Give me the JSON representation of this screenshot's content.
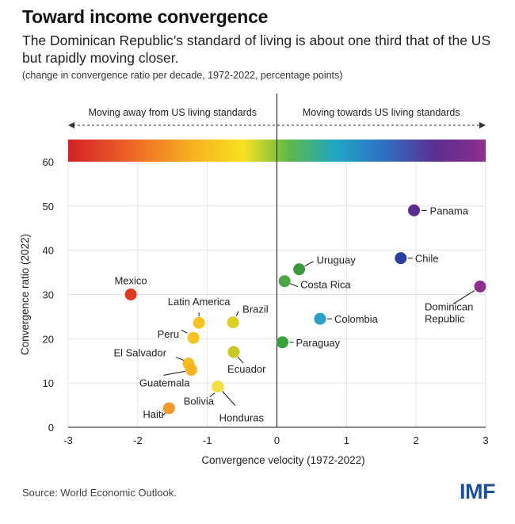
{
  "header": {
    "title": "Toward income convergence",
    "subtitle": "The Dominican Republic’s standard of living is about one third that of the US but rapidly moving closer.",
    "note": "(change in convergence ratio per decade, 1972-2022, percentage points)"
  },
  "footer": {
    "source": "Source: World Economic Outlook.",
    "logo_text": "IMF"
  },
  "chart_data": {
    "type": "scatter",
    "xlabel": "Convergence velocity (1972-2022)",
    "ylabel": "Convergence ratio (2022)",
    "xlim": [
      -3,
      3
    ],
    "ylim": [
      0,
      65
    ],
    "xticks": [
      "-3",
      "-2",
      "-1",
      "0",
      "1",
      "2",
      "3"
    ],
    "yticks": [
      "0",
      "10",
      "20",
      "30",
      "40",
      "50",
      "60"
    ],
    "grid": true,
    "direction_left": "Moving away from US living standards",
    "direction_right": "Moving towards US living standards",
    "points": [
      {
        "label": "Panama",
        "x": 1.97,
        "y": 49,
        "color": "#5b2d90"
      },
      {
        "label": "Chile",
        "x": 1.78,
        "y": 38.2,
        "color": "#2b3f9e"
      },
      {
        "label": "Dominican Republic",
        "x": 2.92,
        "y": 31.8,
        "color": "#8e2f8e"
      },
      {
        "label": "Uruguay",
        "x": 0.32,
        "y": 35.7,
        "color": "#3a9a3a"
      },
      {
        "label": "Costa Rica",
        "x": 0.11,
        "y": 33,
        "color": "#4ca644"
      },
      {
        "label": "Colombia",
        "x": 0.62,
        "y": 24.5,
        "color": "#2aa0c8"
      },
      {
        "label": "Paraguay",
        "x": 0.08,
        "y": 19.2,
        "color": "#3aa13a"
      },
      {
        "label": "Mexico",
        "x": -2.1,
        "y": 30,
        "color": "#de3a1f"
      },
      {
        "label": "Latin America",
        "x": -1.12,
        "y": 23.6,
        "color": "#f5c422"
      },
      {
        "label": "Peru",
        "x": -1.2,
        "y": 20.2,
        "color": "#f5c422"
      },
      {
        "label": "Brazil",
        "x": -0.63,
        "y": 23.7,
        "color": "#d9cf25"
      },
      {
        "label": "Ecuador",
        "x": -0.62,
        "y": 17,
        "color": "#c9c825"
      },
      {
        "label": "El Salvador",
        "x": -1.27,
        "y": 14.4,
        "color": "#f5bd22"
      },
      {
        "label": "Guatemala",
        "x": -1.23,
        "y": 13,
        "color": "#f5b422"
      },
      {
        "label": "Bolivia",
        "x": -0.85,
        "y": 9.2,
        "color": "#f2e040"
      },
      {
        "label": "Haiti",
        "x": -1.55,
        "y": 4.3,
        "color": "#f19a2a"
      },
      {
        "label": "Honduras",
        "x": -0.85,
        "y": 9.2,
        "color": "#f2e040"
      }
    ]
  }
}
